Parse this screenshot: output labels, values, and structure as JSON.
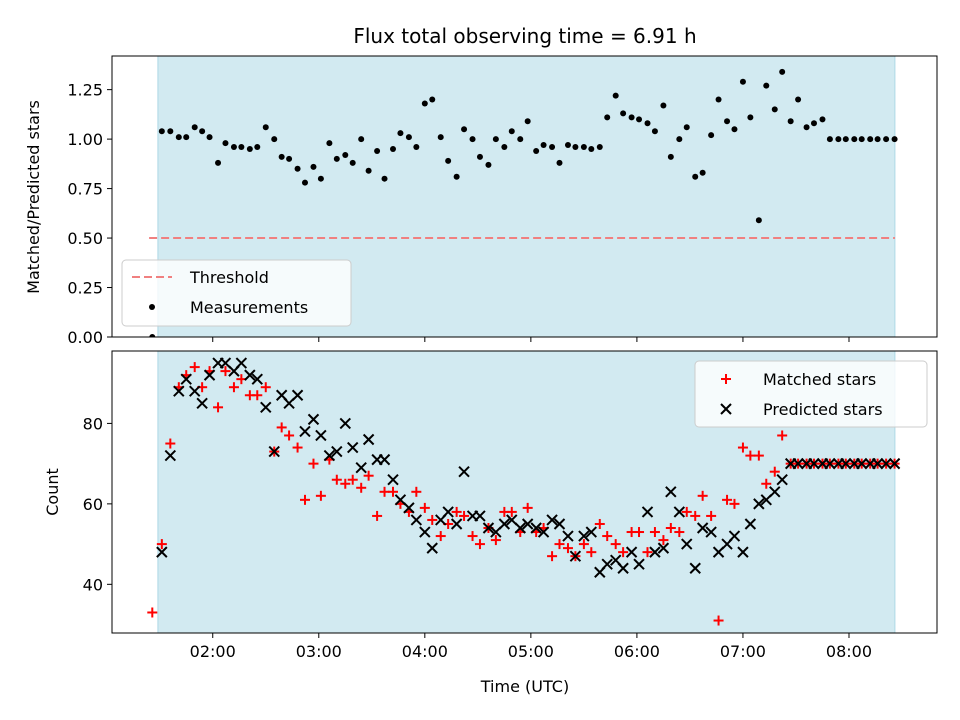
{
  "chart_data": [
    {
      "type": "scatter",
      "title": "Flux total observing time = 6.91 h",
      "xlabel": "",
      "ylabel": "Matched/Predicted stars",
      "ylim": [
        0,
        1.42
      ],
      "yticks": [
        0.0,
        0.25,
        0.5,
        0.75,
        1.0,
        1.25
      ],
      "ytick_labels": [
        "0.00",
        "0.25",
        "0.50",
        "0.75",
        "1.00",
        "1.25"
      ],
      "xlim_hours": [
        1.05,
        8.83
      ],
      "shaded_range_hours": [
        1.483,
        8.433
      ],
      "shade_color": "#add8e6",
      "threshold": {
        "name": "Threshold",
        "value": 0.5,
        "x_range_hours": [
          1.4,
          8.433
        ],
        "color": "#f08080"
      },
      "legend": {
        "placement": "lower-left",
        "entries": [
          "Threshold",
          "Measurements"
        ]
      },
      "series": [
        {
          "name": "Measurements",
          "color": "#000000",
          "marker": "dot",
          "x_hours": [
            1.43,
            1.52,
            1.6,
            1.68,
            1.75,
            1.83,
            1.9,
            1.97,
            2.05,
            2.12,
            2.2,
            2.27,
            2.35,
            2.42,
            2.5,
            2.58,
            2.65,
            2.72,
            2.8,
            2.87,
            2.95,
            3.02,
            3.1,
            3.17,
            3.25,
            3.32,
            3.4,
            3.47,
            3.55,
            3.62,
            3.7,
            3.77,
            3.85,
            3.92,
            4.0,
            4.07,
            4.15,
            4.22,
            4.3,
            4.37,
            4.45,
            4.52,
            4.6,
            4.67,
            4.75,
            4.82,
            4.9,
            4.97,
            5.05,
            5.12,
            5.2,
            5.27,
            5.35,
            5.42,
            5.5,
            5.57,
            5.65,
            5.72,
            5.8,
            5.87,
            5.95,
            6.02,
            6.1,
            6.17,
            6.25,
            6.32,
            6.4,
            6.47,
            6.55,
            6.62,
            6.7,
            6.77,
            6.85,
            6.92,
            7.0,
            7.07,
            7.15,
            7.22,
            7.3,
            7.37,
            7.45,
            7.52,
            7.6,
            7.67,
            7.75,
            7.82,
            7.9,
            7.97,
            8.05,
            8.12,
            8.2,
            8.27,
            8.35,
            8.43
          ],
          "y": [
            0.0,
            1.04,
            1.04,
            1.01,
            1.01,
            1.06,
            1.04,
            1.01,
            0.88,
            0.98,
            0.96,
            0.96,
            0.95,
            0.96,
            1.06,
            1.0,
            0.91,
            0.9,
            0.85,
            0.78,
            0.86,
            0.8,
            0.98,
            0.9,
            0.92,
            0.88,
            1.0,
            0.84,
            0.94,
            0.8,
            0.95,
            1.03,
            1.01,
            0.96,
            1.18,
            1.2,
            1.01,
            0.89,
            0.81,
            1.05,
            1.0,
            0.91,
            0.87,
            1.0,
            0.96,
            1.04,
            1.0,
            1.09,
            0.94,
            0.97,
            0.96,
            0.88,
            0.97,
            0.96,
            0.96,
            0.95,
            0.96,
            1.11,
            1.22,
            1.13,
            1.11,
            1.1,
            1.08,
            1.04,
            1.17,
            0.91,
            1.0,
            1.06,
            0.81,
            0.83,
            1.02,
            1.2,
            1.09,
            1.05,
            1.29,
            1.11,
            0.59,
            1.27,
            1.15,
            1.34,
            1.09,
            1.2,
            1.06,
            1.08,
            1.1,
            1.0,
            1.0,
            1.0,
            1.0,
            1.0,
            1.0,
            1.0,
            1.0,
            1.0
          ]
        }
      ]
    },
    {
      "type": "scatter",
      "title": "",
      "xlabel": "Time (UTC)",
      "ylabel": "Count",
      "ylim": [
        27.9,
        98
      ],
      "yticks": [
        40,
        60,
        80
      ],
      "ytick_labels": [
        "40",
        "60",
        "80"
      ],
      "xlim_hours": [
        1.05,
        8.83
      ],
      "xticks_hours": [
        2,
        3,
        4,
        5,
        6,
        7,
        8
      ],
      "xtick_labels": [
        "02:00",
        "03:00",
        "04:00",
        "05:00",
        "06:00",
        "07:00",
        "08:00"
      ],
      "shaded_range_hours": [
        1.483,
        8.433
      ],
      "shade_color": "#add8e6",
      "legend": {
        "placement": "top-right",
        "entries": [
          "Matched stars",
          "Predicted stars"
        ]
      },
      "series": [
        {
          "name": "Matched stars",
          "color": "#ff0000",
          "marker": "plus",
          "x_hours": [
            1.43,
            1.52,
            1.6,
            1.68,
            1.75,
            1.83,
            1.9,
            1.97,
            2.05,
            2.12,
            2.2,
            2.27,
            2.35,
            2.42,
            2.5,
            2.58,
            2.65,
            2.72,
            2.8,
            2.87,
            2.95,
            3.02,
            3.1,
            3.17,
            3.25,
            3.32,
            3.4,
            3.47,
            3.55,
            3.62,
            3.7,
            3.77,
            3.85,
            3.92,
            4.0,
            4.07,
            4.15,
            4.22,
            4.3,
            4.37,
            4.45,
            4.52,
            4.6,
            4.67,
            4.75,
            4.82,
            4.9,
            4.97,
            5.05,
            5.12,
            5.2,
            5.27,
            5.35,
            5.42,
            5.5,
            5.57,
            5.65,
            5.72,
            5.8,
            5.87,
            5.95,
            6.02,
            6.1,
            6.17,
            6.25,
            6.32,
            6.4,
            6.47,
            6.55,
            6.62,
            6.7,
            6.77,
            6.85,
            6.92,
            7.0,
            7.07,
            7.15,
            7.22,
            7.3,
            7.37,
            7.45,
            7.52,
            7.6,
            7.67,
            7.75,
            7.82,
            7.9,
            7.97,
            8.05,
            8.12,
            8.2,
            8.27,
            8.35,
            8.43
          ],
          "y": [
            33,
            50,
            75,
            89,
            92,
            94,
            89,
            93,
            84,
            93,
            89,
            91,
            87,
            87,
            89,
            73,
            79,
            77,
            74,
            61,
            70,
            62,
            71,
            66,
            65,
            66,
            64,
            67,
            57,
            63,
            63,
            60,
            58,
            63,
            59,
            56,
            52,
            55,
            58,
            57,
            52,
            50,
            54,
            51,
            58,
            58,
            53,
            59,
            53,
            54,
            47,
            50,
            49,
            47,
            50,
            48,
            55,
            52,
            50,
            48,
            53,
            53,
            48,
            53,
            51,
            54,
            53,
            58,
            57,
            62,
            57,
            31,
            61,
            60,
            74,
            72,
            72,
            65,
            68,
            77,
            70,
            70,
            70,
            70,
            70,
            70,
            70,
            70,
            70,
            70,
            70,
            70,
            70,
            70
          ],
          "note_visible_only": true
        },
        {
          "name": "Predicted stars",
          "color": "#000000",
          "marker": "x",
          "x_hours": [
            1.52,
            1.6,
            1.68,
            1.75,
            1.83,
            1.9,
            1.97,
            2.05,
            2.12,
            2.2,
            2.27,
            2.35,
            2.42,
            2.5,
            2.58,
            2.65,
            2.72,
            2.8,
            2.87,
            2.95,
            3.02,
            3.1,
            3.17,
            3.25,
            3.32,
            3.4,
            3.47,
            3.55,
            3.62,
            3.7,
            3.77,
            3.85,
            3.92,
            4.0,
            4.07,
            4.15,
            4.22,
            4.3,
            4.37,
            4.45,
            4.52,
            4.6,
            4.67,
            4.75,
            4.82,
            4.9,
            4.97,
            5.05,
            5.12,
            5.2,
            5.27,
            5.35,
            5.42,
            5.5,
            5.57,
            5.65,
            5.72,
            5.8,
            5.87,
            5.95,
            6.02,
            6.1,
            6.17,
            6.25,
            6.32,
            6.4,
            6.47,
            6.55,
            6.62,
            6.7,
            6.77,
            6.85,
            6.92,
            7.0,
            7.07,
            7.15,
            7.22,
            7.3,
            7.37,
            7.45,
            7.52,
            7.6,
            7.67,
            7.75,
            7.82,
            7.9,
            7.97,
            8.05,
            8.12,
            8.2,
            8.27,
            8.35,
            8.43
          ],
          "y": [
            48,
            72,
            88,
            91,
            88,
            85,
            92,
            95,
            95,
            93,
            95,
            92,
            91,
            84,
            73,
            87,
            85,
            87,
            78,
            81,
            77,
            72,
            73,
            80,
            74,
            69,
            76,
            71,
            71,
            66,
            61,
            59,
            56,
            53,
            49,
            56,
            58,
            55,
            68,
            57,
            57,
            54,
            53,
            55,
            56,
            54,
            55,
            54,
            53,
            56,
            55,
            52,
            47,
            52,
            53,
            43,
            45,
            46,
            44,
            48,
            45,
            58,
            48,
            49,
            63,
            58,
            50,
            44,
            54,
            53,
            48,
            50,
            52,
            48,
            55,
            60,
            61,
            63,
            66,
            70,
            70,
            70,
            70,
            70,
            70,
            70,
            70,
            70,
            70,
            70,
            70,
            70,
            70
          ]
        }
      ]
    }
  ]
}
